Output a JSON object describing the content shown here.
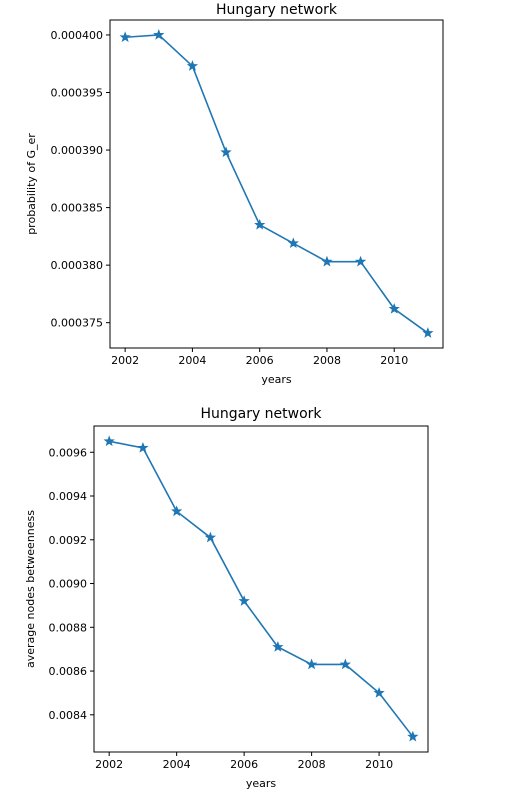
{
  "chart_data": [
    {
      "type": "line",
      "title": "Hungary network",
      "xlabel": "years",
      "ylabel": "probability of G_er",
      "x": [
        2002,
        2003,
        2004,
        2005,
        2006,
        2007,
        2008,
        2009,
        2010,
        2011
      ],
      "series": [
        {
          "values": [
            0.0003998,
            0.0004,
            0.0003973,
            0.0003898,
            0.0003835,
            0.0003819,
            0.0003803,
            0.0003803,
            0.0003762,
            0.0003741
          ]
        }
      ],
      "xticks": [
        2002,
        2004,
        2006,
        2008,
        2010
      ],
      "xtick_labels": [
        "2002",
        "2004",
        "2006",
        "2008",
        "2010"
      ],
      "yticks": [
        0.000375,
        0.00038,
        0.000385,
        0.00039,
        0.000395,
        0.0004
      ],
      "ytick_labels": [
        "0.000375",
        "0.000380",
        "0.000385",
        "0.000390",
        "0.000395",
        "0.000400"
      ],
      "xlim": [
        2001.55,
        2011.45
      ],
      "ylim": [
        0.0003728,
        0.0004013
      ],
      "grid": false,
      "color": "#1f77b4",
      "marker": "star"
    },
    {
      "type": "line",
      "title": "Hungary network",
      "xlabel": "years",
      "ylabel": "average nodes betweenness",
      "x": [
        2002,
        2003,
        2004,
        2005,
        2006,
        2007,
        2008,
        2009,
        2010,
        2011
      ],
      "series": [
        {
          "values": [
            0.00965,
            0.00962,
            0.00933,
            0.00921,
            0.00892,
            0.00871,
            0.00863,
            0.00863,
            0.0085,
            0.0083
          ]
        }
      ],
      "xticks": [
        2002,
        2004,
        2006,
        2008,
        2010
      ],
      "xtick_labels": [
        "2002",
        "2004",
        "2006",
        "2008",
        "2010"
      ],
      "yticks": [
        0.0084,
        0.0086,
        0.0088,
        0.009,
        0.0092,
        0.0094,
        0.0096
      ],
      "ytick_labels": [
        "0.0084",
        "0.0086",
        "0.0088",
        "0.0090",
        "0.0092",
        "0.0094",
        "0.0096"
      ],
      "xlim": [
        2001.55,
        2011.45
      ],
      "ylim": [
        0.00823,
        0.00972
      ],
      "grid": false,
      "color": "#1f77b4",
      "marker": "star"
    }
  ]
}
